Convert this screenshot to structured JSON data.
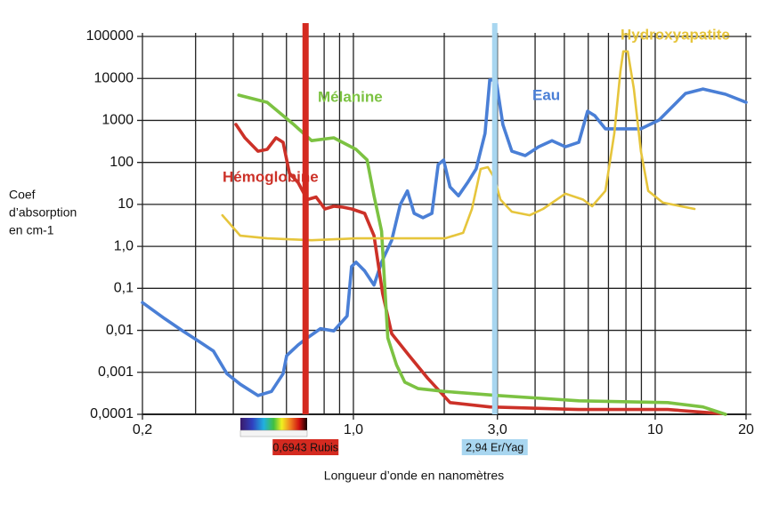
{
  "chart_data": {
    "type": "line",
    "xscale": "log",
    "yscale": "log",
    "grid": true,
    "xlabel": "Longueur d’onde en nanomètres",
    "ylabel": [
      "Coef",
      "d’absorption",
      "en cm-1"
    ],
    "xlim": [
      0.2,
      20
    ],
    "ylim": [
      0.0001,
      100000
    ],
    "xticks": [
      {
        "value": 0.2,
        "label": "0,2"
      },
      {
        "value": 1,
        "label": "1,0"
      },
      {
        "value": 3,
        "label": "3,0"
      },
      10,
      20
    ],
    "xgrid": [
      0.2,
      0.3,
      0.4,
      0.5,
      0.6,
      0.7,
      0.8,
      0.9,
      1,
      2,
      3,
      4,
      5,
      6,
      7,
      8,
      9,
      10,
      20
    ],
    "yticks": [
      100000,
      10000,
      1000,
      100,
      10,
      {
        "value": 1,
        "label": "1,0"
      },
      {
        "value": 0.1,
        "label": "0,1"
      },
      {
        "value": 0.01,
        "label": "0,01"
      },
      {
        "value": 0.001,
        "label": "0,001"
      },
      {
        "value": 0.0001,
        "label": "0,0001"
      }
    ],
    "series": [
      {
        "name": "Eau",
        "color": "#4a7fd6",
        "x": [
          0.2,
          0.237,
          0.272,
          0.311,
          0.344,
          0.381,
          0.422,
          0.483,
          0.535,
          0.585,
          0.601,
          0.656,
          0.703,
          0.778,
          0.861,
          0.953,
          0.986,
          1.02,
          1.09,
          1.17,
          1.24,
          1.34,
          1.43,
          1.51,
          1.59,
          1.7,
          1.82,
          1.91,
          1.99,
          2.09,
          2.23,
          2.39,
          2.55,
          2.73,
          2.83,
          2.97,
          3.13,
          3.35,
          3.71,
          4.11,
          4.55,
          5.04,
          5.58,
          5.97,
          6.31,
          6.84,
          7.84,
          8.97,
          10.3,
          12.6,
          14.4,
          17.1,
          20
        ],
        "values": [
          0.046,
          0.019,
          0.0097,
          0.0052,
          0.0032,
          0.00093,
          0.00052,
          0.00028,
          0.00035,
          0.00093,
          0.0025,
          0.0045,
          0.0066,
          0.011,
          0.0097,
          0.022,
          0.33,
          0.42,
          0.26,
          0.12,
          0.42,
          1.4,
          9.9,
          21,
          6.1,
          4.8,
          6.1,
          89,
          114,
          26,
          16,
          33,
          70,
          490,
          9200,
          9200,
          790,
          185,
          145,
          235,
          330,
          235,
          300,
          1660,
          1290,
          630,
          630,
          630,
          1020,
          4400,
          5600,
          4200,
          2700
        ]
      },
      {
        "name": "Hémoglobine",
        "color": "#cc3128",
        "x": [
          0.408,
          0.437,
          0.483,
          0.518,
          0.554,
          0.585,
          0.614,
          0.656,
          0.703,
          0.752,
          0.805,
          0.861,
          0.922,
          0.986,
          1.09,
          1.17,
          1.25,
          1.34,
          1.53,
          1.76,
          2.09,
          2.83,
          5.58,
          11.0,
          16.5
        ],
        "values": [
          800,
          385,
          185,
          204,
          385,
          300,
          55,
          33,
          13,
          15,
          7.8,
          9,
          8.6,
          7.8,
          6.1,
          1.8,
          0.075,
          0.0083,
          0.0025,
          0.00073,
          0.00019,
          0.00015,
          0.00013,
          0.00013,
          0.000104
        ]
      },
      {
        "name": "Mélanine",
        "color": "#7cc242",
        "x": [
          0.417,
          0.518,
          0.634,
          0.727,
          0.861,
          1.02,
          1.11,
          1.17,
          1.24,
          1.27,
          1.3,
          1.39,
          1.48,
          1.64,
          2.01,
          3.03,
          5.58,
          11.0,
          14.4,
          17.1
        ],
        "values": [
          4000,
          2700,
          800,
          330,
          385,
          204,
          115,
          16,
          2.3,
          0.12,
          0.0066,
          0.0015,
          0.00058,
          0.00041,
          0.00035,
          0.00028,
          0.00021,
          0.00019,
          0.00015,
          0.0001
        ]
      },
      {
        "name": "Hydroxyapatite",
        "color": "#e6c53c",
        "x": [
          0.368,
          0.422,
          0.518,
          0.727,
          1.02,
          1.43,
          2.01,
          2.31,
          2.47,
          2.64,
          2.79,
          2.93,
          3.07,
          3.35,
          3.84,
          4.25,
          5.04,
          5.77,
          6.18,
          6.84,
          7.32,
          7.67,
          7.84,
          8.11,
          8.5,
          8.97,
          9.48,
          10.6,
          13.5
        ],
        "values": [
          5.5,
          1.8,
          1.55,
          1.4,
          1.55,
          1.55,
          1.55,
          2.1,
          7.8,
          70,
          77,
          43,
          13,
          6.7,
          5.5,
          7.8,
          18,
          13,
          9,
          21,
          490,
          15000,
          44000,
          44000,
          5600,
          185,
          21,
          11,
          7.8
        ]
      }
    ],
    "markers": [
      {
        "x": 0.6943,
        "label": "0,6943 Rubis",
        "color": "#d42a20"
      },
      {
        "x": 2.94,
        "label": "2,94  Er/Yag",
        "color": "#a8d6f0"
      }
    ]
  }
}
